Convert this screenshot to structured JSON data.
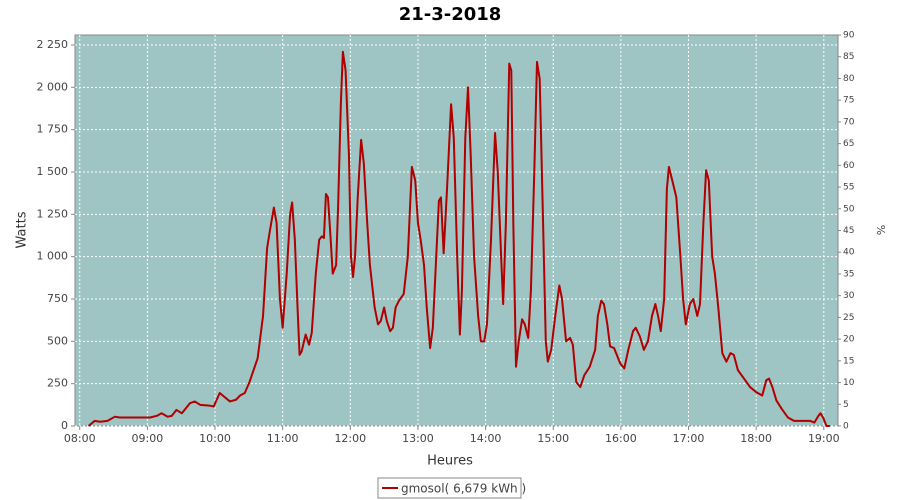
{
  "chart_data": {
    "type": "line",
    "title": "21-3-2018",
    "x_label": "Heures",
    "y_label": "Watts",
    "y2_label": "%",
    "xlim": [
      7.93,
      19.21
    ],
    "xticks": [
      {
        "value": 8,
        "label": "08:00"
      },
      {
        "value": 9,
        "label": "09:00"
      },
      {
        "value": 10,
        "label": "10:00"
      },
      {
        "value": 11,
        "label": "11:00"
      },
      {
        "value": 12,
        "label": "12:00"
      },
      {
        "value": 13,
        "label": "13:00"
      },
      {
        "value": 14,
        "label": "14:00"
      },
      {
        "value": 15,
        "label": "15:00"
      },
      {
        "value": 16,
        "label": "16:00"
      },
      {
        "value": 17,
        "label": "17:00"
      },
      {
        "value": 18,
        "label": "18:00"
      },
      {
        "value": 19,
        "label": "19:00"
      }
    ],
    "ylim": [
      0,
      2309
    ],
    "yticks": [
      0,
      250,
      500,
      750,
      {
        "value": 1000,
        "label": "1 000"
      },
      {
        "value": 1250,
        "label": "1 250"
      },
      {
        "value": 1500,
        "label": "1 500"
      },
      {
        "value": 1750,
        "label": "1 750"
      },
      {
        "value": 2000,
        "label": "2 000"
      },
      {
        "value": 2250,
        "label": "2 250"
      }
    ],
    "y2lim": [
      0,
      90
    ],
    "y2ticks": [
      0,
      5,
      10,
      15,
      20,
      25,
      30,
      35,
      40,
      45,
      50,
      55,
      60,
      65,
      70,
      75,
      80,
      85,
      90
    ],
    "grid": true,
    "legend": "bottom",
    "x": [
      8.13,
      8.22,
      8.3,
      8.41,
      8.52,
      8.59,
      9.04,
      9.14,
      9.21,
      9.3,
      9.36,
      9.43,
      9.51,
      9.58,
      9.63,
      9.7,
      9.78,
      9.92,
      9.98,
      10.07,
      10.13,
      10.22,
      10.31,
      10.37,
      10.44,
      10.51,
      10.63,
      10.71,
      10.77,
      10.81,
      10.87,
      10.91,
      10.96,
      11.0,
      11.06,
      11.11,
      11.14,
      11.18,
      11.22,
      11.25,
      11.28,
      11.34,
      11.39,
      11.43,
      11.49,
      11.54,
      11.58,
      11.61,
      11.64,
      11.67,
      11.71,
      11.74,
      11.79,
      11.82,
      11.86,
      11.89,
      11.93,
      11.98,
      12.01,
      12.04,
      12.07,
      12.11,
      12.16,
      12.2,
      12.25,
      12.29,
      12.36,
      12.41,
      12.45,
      12.5,
      12.54,
      12.59,
      12.63,
      12.67,
      12.72,
      12.79,
      12.85,
      12.91,
      12.96,
      13.0,
      13.04,
      13.09,
      13.13,
      13.18,
      13.22,
      13.27,
      13.31,
      13.34,
      13.38,
      13.43,
      13.49,
      13.53,
      13.58,
      13.62,
      13.65,
      13.7,
      13.74,
      13.78,
      13.83,
      13.89,
      13.93,
      13.98,
      14.02,
      14.08,
      14.14,
      14.18,
      14.23,
      14.26,
      14.3,
      14.35,
      14.38,
      14.41,
      14.45,
      14.49,
      14.54,
      14.58,
      14.63,
      14.67,
      14.72,
      14.76,
      14.8,
      14.85,
      14.89,
      14.92,
      14.97,
      15.03,
      15.09,
      15.13,
      15.19,
      15.25,
      15.29,
      15.34,
      15.4,
      15.46,
      15.54,
      15.62,
      15.66,
      15.71,
      15.75,
      15.8,
      15.84,
      15.9,
      15.99,
      16.05,
      16.11,
      16.18,
      16.22,
      16.28,
      16.34,
      16.4,
      16.46,
      16.51,
      16.55,
      16.59,
      16.64,
      16.68,
      16.71,
      16.76,
      16.82,
      16.88,
      16.92,
      16.96,
      17.02,
      17.07,
      17.13,
      17.17,
      17.22,
      17.26,
      17.3,
      17.35,
      17.39,
      17.44,
      17.5,
      17.56,
      17.62,
      17.67,
      17.73,
      17.82,
      17.91,
      18.0,
      18.09,
      18.15,
      18.19,
      18.24,
      18.3,
      18.38,
      18.47,
      18.56,
      18.8,
      18.86,
      18.92,
      18.95,
      18.99,
      19.04,
      19.09
    ],
    "series": [
      {
        "name": "gmosol( 6,679 kWh )",
        "color": "#b00000",
        "values": [
          0,
          30,
          25,
          30,
          55,
          50,
          50,
          60,
          75,
          55,
          60,
          95,
          75,
          110,
          135,
          145,
          125,
          120,
          115,
          195,
          175,
          145,
          155,
          180,
          195,
          260,
          400,
          650,
          1050,
          1150,
          1290,
          1200,
          750,
          580,
          900,
          1250,
          1320,
          1100,
          700,
          420,
          440,
          540,
          480,
          550,
          900,
          1100,
          1120,
          1110,
          1370,
          1350,
          1100,
          900,
          950,
          1300,
          1900,
          2210,
          2100,
          1600,
          1000,
          880,
          1000,
          1350,
          1690,
          1550,
          1200,
          950,
          700,
          600,
          620,
          700,
          620,
          560,
          580,
          700,
          740,
          780,
          1000,
          1530,
          1450,
          1200,
          1100,
          950,
          700,
          460,
          580,
          1000,
          1330,
          1350,
          1020,
          1400,
          1900,
          1700,
          1000,
          540,
          800,
          1700,
          2000,
          1600,
          1000,
          650,
          500,
          500,
          600,
          1100,
          1730,
          1500,
          1000,
          720,
          1200,
          2140,
          2100,
          1200,
          350,
          500,
          630,
          600,
          520,
          800,
          1500,
          2150,
          2050,
          1200,
          500,
          380,
          450,
          650,
          830,
          750,
          500,
          520,
          480,
          260,
          230,
          300,
          350,
          450,
          650,
          740,
          720,
          600,
          470,
          460,
          370,
          340,
          450,
          560,
          580,
          530,
          450,
          500,
          650,
          720,
          650,
          560,
          750,
          1400,
          1530,
          1450,
          1350,
          1000,
          750,
          600,
          720,
          750,
          650,
          720,
          1200,
          1510,
          1450,
          1000,
          900,
          700,
          430,
          380,
          430,
          420,
          330,
          280,
          230,
          200,
          180,
          270,
          280,
          230,
          150,
          100,
          50,
          30,
          30,
          20,
          60,
          75,
          50,
          0,
          0
        ]
      }
    ]
  }
}
